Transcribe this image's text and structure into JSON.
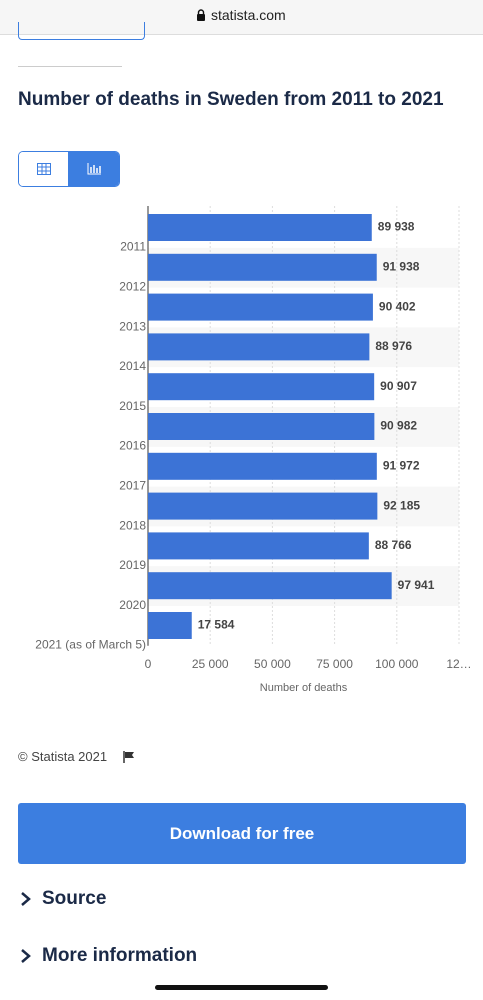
{
  "url": "statista.com",
  "copyright": "© Statista 2021",
  "download_button": "Download for free",
  "source": "Source",
  "more_information": "More information",
  "chart_data": {
    "type": "bar",
    "orientation": "horizontal",
    "title": "Number of deaths in Sweden from 2011 to 2021",
    "x_label": "Number of deaths",
    "categories": [
      "2011",
      "2012",
      "2013",
      "2014",
      "2015",
      "2016",
      "2017",
      "2018",
      "2019",
      "2020",
      "2021 (as of March 5)"
    ],
    "values": [
      89938,
      91938,
      90402,
      88976,
      90907,
      90982,
      91972,
      92185,
      88766,
      97941,
      17584
    ],
    "value_labels": [
      "89 938",
      "91 938",
      "90 402",
      "88 976",
      "90 907",
      "90 982",
      "91 972",
      "92 185",
      "88 766",
      "97 941",
      "17 584"
    ],
    "color": "#3c73d6",
    "xlim": [
      0,
      125000
    ],
    "xticks": [
      0,
      {
        "value": 25000,
        "label": "25 000"
      },
      {
        "value": 50000,
        "label": "50 000"
      },
      {
        "value": 75000,
        "label": "75 000"
      },
      {
        "value": 100000,
        "label": "100 000"
      },
      {
        "value": 125000,
        "label": "12…"
      }
    ],
    "grid": true
  }
}
